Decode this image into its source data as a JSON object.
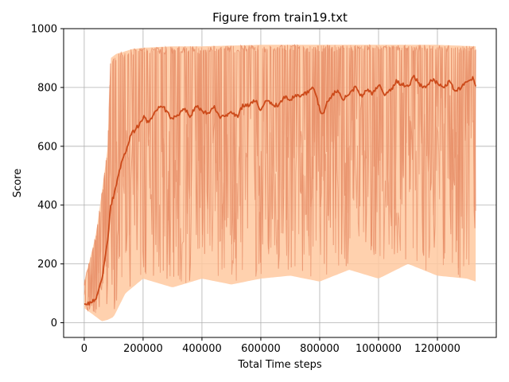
{
  "chart_data": {
    "type": "line",
    "title": "Figure from train19.txt",
    "xlabel": "Total Time steps",
    "ylabel": "Score",
    "xlim": [
      -70000,
      1400000
    ],
    "ylim": [
      -50,
      1000
    ],
    "xticks": [
      0,
      200000,
      400000,
      600000,
      800000,
      1000000,
      1200000
    ],
    "xtick_labels": [
      "0",
      "200000",
      "400000",
      "600000",
      "800000",
      "1000000",
      "1200000"
    ],
    "yticks": [
      0,
      200,
      400,
      600,
      800,
      1000
    ],
    "ytick_labels": [
      "0",
      "200",
      "400",
      "600",
      "800",
      "1000"
    ],
    "grid": true,
    "colors": {
      "band_fill": "#ffc9a0",
      "band_edge": "#e8906a",
      "mean_line": "#cc4a1a"
    },
    "series": [
      {
        "role": "mean",
        "x": [
          0,
          20000,
          40000,
          60000,
          80000,
          90000,
          100000,
          120000,
          140000,
          160000,
          180000,
          200000,
          220000,
          240000,
          260000,
          280000,
          300000,
          320000,
          340000,
          360000,
          380000,
          400000,
          420000,
          440000,
          460000,
          480000,
          500000,
          520000,
          540000,
          560000,
          580000,
          600000,
          620000,
          640000,
          660000,
          680000,
          700000,
          720000,
          740000,
          760000,
          780000,
          800000,
          810000,
          820000,
          840000,
          860000,
          880000,
          900000,
          920000,
          940000,
          960000,
          980000,
          1000000,
          1020000,
          1040000,
          1060000,
          1080000,
          1100000,
          1120000,
          1140000,
          1160000,
          1180000,
          1200000,
          1220000,
          1240000,
          1260000,
          1280000,
          1300000,
          1320000,
          1330000
        ],
        "y": [
          60,
          65,
          85,
          150,
          280,
          400,
          430,
          520,
          580,
          640,
          665,
          700,
          680,
          720,
          740,
          720,
          690,
          710,
          730,
          700,
          740,
          720,
          710,
          735,
          700,
          700,
          720,
          700,
          740,
          740,
          760,
          720,
          760,
          740,
          740,
          770,
          760,
          775,
          770,
          785,
          800,
          730,
          700,
          740,
          770,
          790,
          760,
          780,
          800,
          770,
          790,
          780,
          810,
          775,
          790,
          820,
          810,
          800,
          840,
          810,
          800,
          830,
          815,
          800,
          820,
          790,
          800,
          820,
          830,
          800
        ]
      },
      {
        "role": "max",
        "x": [
          0,
          40000,
          70000,
          80000,
          90000,
          110000,
          130000,
          160000,
          200000,
          300000,
          400000,
          600000,
          800000,
          1000000,
          1200000,
          1330000
        ],
        "y": [
          140,
          300,
          520,
          600,
          900,
          915,
          920,
          930,
          935,
          940,
          940,
          945,
          945,
          945,
          945,
          940
        ]
      },
      {
        "role": "min",
        "x": [
          0,
          40000,
          60000,
          80000,
          100000,
          140000,
          200000,
          300000,
          400000,
          500000,
          600000,
          700000,
          800000,
          900000,
          1000000,
          1100000,
          1200000,
          1300000,
          1330000
        ],
        "y": [
          50,
          20,
          5,
          10,
          20,
          100,
          150,
          120,
          150,
          130,
          150,
          160,
          140,
          180,
          150,
          200,
          160,
          150,
          140
        ]
      }
    ]
  }
}
